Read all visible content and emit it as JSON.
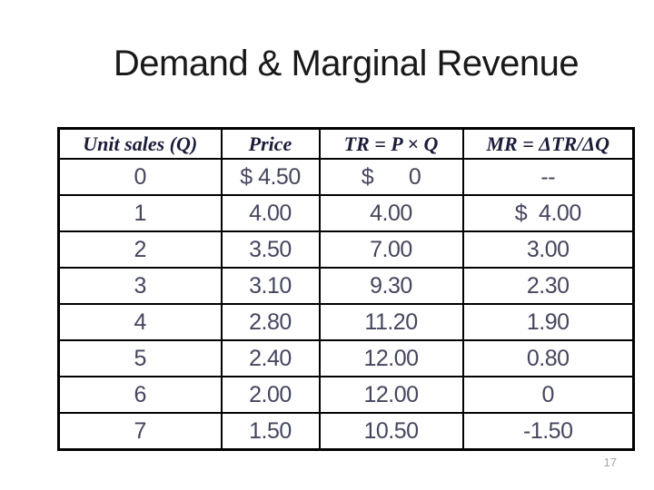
{
  "colors": {
    "background": "#ffffff",
    "title-text": "#191919",
    "header-text": "#1c1c3a",
    "data-text": "#45455e",
    "table-border": "#000000",
    "page-number-text": "#a6a6a6"
  },
  "slide": {
    "title": "Demand & Marginal Revenue",
    "page_number": "17"
  },
  "table": {
    "columns": [
      "Unit sales (Q)",
      "Price",
      "TR = P × Q",
      "MR = ΔTR/ΔQ"
    ],
    "rows": [
      [
        "0",
        "$ 4.50",
        "$      0",
        "--"
      ],
      [
        "1",
        "4.00",
        "4.00",
        "$  4.00"
      ],
      [
        "2",
        "3.50",
        "7.00",
        "3.00"
      ],
      [
        "3",
        "3.10",
        "9.30",
        "2.30"
      ],
      [
        "4",
        "2.80",
        "11.20",
        "1.90"
      ],
      [
        "5",
        "2.40",
        "12.00",
        "0.80"
      ],
      [
        "6",
        "2.00",
        "12.00",
        "0"
      ],
      [
        "7",
        "1.50",
        "10.50",
        "-1.50"
      ]
    ]
  }
}
